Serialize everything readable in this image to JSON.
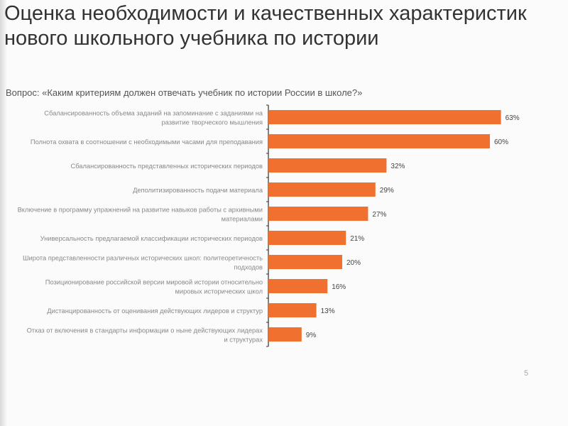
{
  "title": "Оценка необходимости и качественных характеристик нового школьного учебника по истории",
  "question": "Вопрос: «Каким критериям должен отвечать учебник по истории России в школе?»",
  "page_number": "5",
  "colors": {
    "bar": "#f07030",
    "label": "#888888"
  },
  "chart_data": {
    "type": "bar",
    "orientation": "horizontal",
    "title": "Вопрос: «Каким критериям должен отвечать учебник по истории России в школе?»",
    "unit": "%",
    "xlim": [
      0,
      65
    ],
    "categories": [
      [
        "Сбалансированность объема заданий на запоминание с заданиями на",
        "развитие творческого мышления"
      ],
      [
        "Полнота охвата в соотношении с необходимыми часами для преподавания"
      ],
      [
        "Сбалансированность представленных исторических периодов"
      ],
      [
        "Деполитизированность подачи материала"
      ],
      [
        "Включение в программу упражнений на развитие навыков работы с архивными",
        "материалами"
      ],
      [
        "Универсальность предлагаемой классификации исторических периодов"
      ],
      [
        "Широта представленности различных исторических школ: политеоретичность",
        "подходов"
      ],
      [
        "Позиционирование российской версии мировой истории относительно",
        "мировых исторических школ"
      ],
      [
        "Дистанцированность от оценивания действующих лидеров и структур"
      ],
      [
        "Отказ от включения в стандарты информации о ныне действующих лидерах",
        "и структурах"
      ]
    ],
    "values": [
      63,
      60,
      32,
      29,
      27,
      21,
      20,
      16,
      13,
      9
    ],
    "value_labels": [
      "63%",
      "60%",
      "32%",
      "29%",
      "27%",
      "21%",
      "20%",
      "16%",
      "13%",
      "9%"
    ]
  }
}
